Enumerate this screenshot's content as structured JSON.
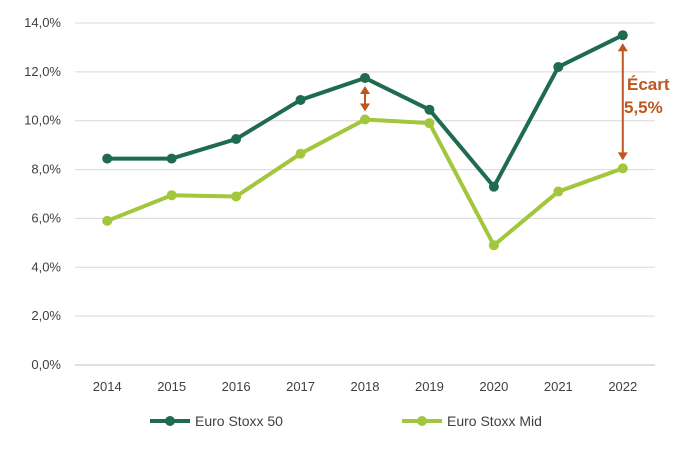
{
  "chart_data": {
    "type": "line",
    "title": "",
    "xlabel": "",
    "ylabel": "",
    "categories": [
      "2014",
      "2015",
      "2016",
      "2017",
      "2018",
      "2019",
      "2020",
      "2021",
      "2022"
    ],
    "ylim": [
      0,
      14
    ],
    "yticks": [
      "0,0%",
      "2,0%",
      "4,0%",
      "6,0%",
      "8,0%",
      "10,0%",
      "12,0%",
      "14,0%"
    ],
    "grid": true,
    "legend_position": "bottom",
    "series": [
      {
        "name": "Euro Stoxx 50",
        "color": "#1e6b4f",
        "values": [
          8.45,
          8.45,
          9.25,
          10.85,
          11.75,
          10.45,
          7.3,
          12.2,
          13.5
        ]
      },
      {
        "name": "Euro Stoxx Mid",
        "color": "#a2c63c",
        "values": [
          5.9,
          6.95,
          6.9,
          8.65,
          10.05,
          9.9,
          4.9,
          7.1,
          8.05
        ]
      }
    ],
    "annotation": {
      "line1": "Écart",
      "line2": "5,5%",
      "color": "#c0561f",
      "gap_categories": [
        "2018",
        "2022"
      ]
    }
  }
}
